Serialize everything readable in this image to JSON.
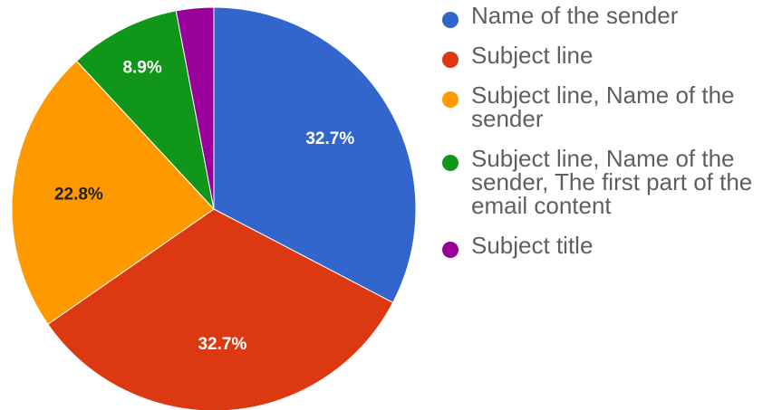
{
  "chart_data": {
    "type": "pie",
    "slices": [
      {
        "label": "Name of the sender",
        "value": 32.7,
        "value_label": "32.7%",
        "color": "#3366cc",
        "label_color": "#ffffff"
      },
      {
        "label": "Subject line",
        "value": 32.7,
        "value_label": "32.7%",
        "color": "#dc3912",
        "label_color": "#ffffff"
      },
      {
        "label": "Subject line, Name of the sender",
        "value": 22.8,
        "value_label": "22.8%",
        "color": "#ff9900",
        "label_color": "#222222"
      },
      {
        "label": "Subject line, Name of the sender, The first part of the email content",
        "value": 8.9,
        "value_label": "8.9%",
        "color": "#109618",
        "label_color": "#ffffff"
      },
      {
        "label": "Subject title",
        "value": 3.0,
        "value_label": "",
        "color": "#990099",
        "label_color": "#ffffff"
      }
    ],
    "start_angle": "top",
    "direction": "clockwise",
    "legend_position": "right"
  },
  "legend": {
    "items": [
      {
        "lines": [
          "Name of the sender"
        ]
      },
      {
        "lines": [
          "Subject line"
        ]
      },
      {
        "lines": [
          "Subject line, Name of the",
          "sender"
        ]
      },
      {
        "lines": [
          "Subject line, Name of the",
          "sender, The first part of the",
          "email content"
        ]
      },
      {
        "lines": [
          "Subject title"
        ]
      }
    ]
  }
}
